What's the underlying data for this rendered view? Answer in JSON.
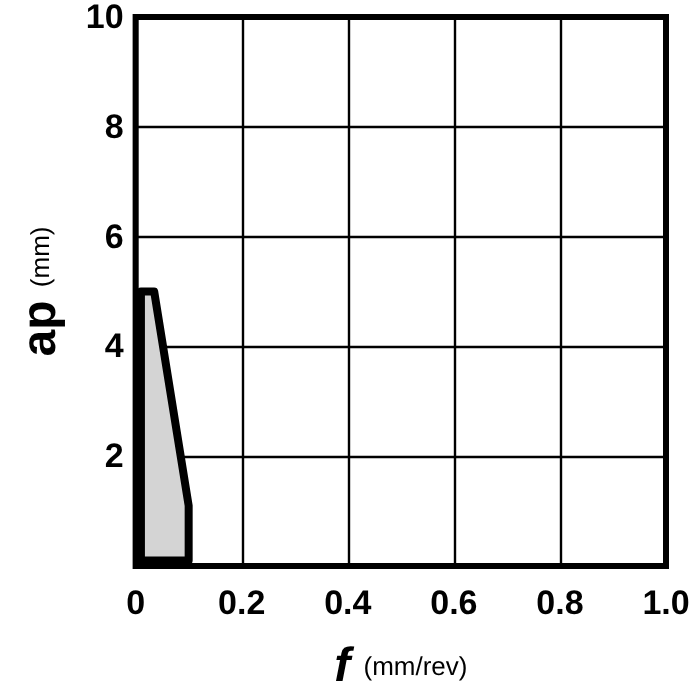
{
  "chart_data": {
    "type": "area",
    "xlabel": "f (mm/rev)",
    "ylabel": "ap (mm)",
    "series": [
      {
        "color": "#d4d4d4",
        "x": [
          0.01,
          0.01,
          0.035,
          0.1,
          0.1
        ],
        "values": [
          0.1,
          5.0,
          5.0,
          1.1,
          0.1
        ]
      }
    ],
    "xlim": [
      0,
      1
    ],
    "xticks": [
      0,
      0.2,
      0.4,
      0.6,
      0.8,
      {
        "value": 1,
        "label": "1.0"
      }
    ],
    "ylim": [
      0,
      10
    ],
    "yticks": [
      2,
      4,
      6,
      8,
      10
    ],
    "grid": true
  }
}
